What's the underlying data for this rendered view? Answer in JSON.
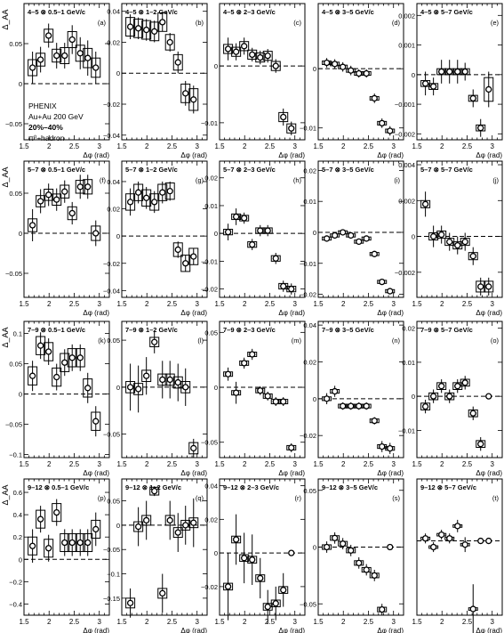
{
  "figure": {
    "ylabel": "Δ_AA",
    "xlabel": "Δφ (rad)",
    "x_ticks": [
      "1.5",
      "2",
      "2.5",
      "3"
    ],
    "experiment": [
      "PHENIX",
      "Au+Au 200 GeV",
      "20%–40%",
      "π⁰–hadron"
    ]
  },
  "chart_data": [
    {
      "row": 0,
      "col": 0,
      "type": "scatter",
      "title": "4–5 ⊗ 0.5–1 GeV/c",
      "tag": "(a)",
      "ylim": [
        -0.07,
        0.1
      ],
      "yticks": [
        -0.05,
        0,
        0.05
      ],
      "ytick_labels": [
        "−0.05",
        "0",
        "0.05"
      ],
      "x": [
        1.67,
        1.83,
        1.99,
        2.15,
        2.31,
        2.46,
        2.62,
        2.77,
        2.93
      ],
      "y": [
        0.02,
        0.03,
        0.06,
        0.035,
        0.035,
        0.055,
        0.038,
        0.032,
        0.02
      ],
      "err": [
        0.02,
        0.016,
        0.015,
        0.016,
        0.016,
        0.018,
        0.02,
        0.022,
        0.02
      ],
      "sys": [
        0.01,
        0.008,
        0.008,
        0.008,
        0.01,
        0.01,
        0.01,
        0.012,
        0.012
      ]
    },
    {
      "row": 0,
      "col": 1,
      "type": "scatter",
      "title": "4–5 ⊗ 1–2 GeV/c",
      "tag": "(b)",
      "ylim": [
        -0.043,
        0.045
      ],
      "yticks": [
        -0.04,
        -0.02,
        0,
        0.02,
        0.04
      ],
      "ytick_labels": [
        "−0.04",
        "−0.02",
        "0",
        "0.02",
        "0.04"
      ],
      "x": [
        1.67,
        1.83,
        1.99,
        2.15,
        2.31,
        2.46,
        2.62,
        2.77,
        2.93
      ],
      "y": [
        0.03,
        0.029,
        0.028,
        0.027,
        0.033,
        0.02,
        0.007,
        -0.013,
        -0.017
      ],
      "err": [
        0.008,
        0.007,
        0.007,
        0.007,
        0.006,
        0.006,
        0.007,
        0.008,
        0.009
      ],
      "sys": [
        0.006,
        0.006,
        0.006,
        0.006,
        0.006,
        0.005,
        0.005,
        0.006,
        0.007
      ]
    },
    {
      "row": 0,
      "col": 2,
      "type": "scatter",
      "title": "4–5 ⊗ 2–3 GeV/c",
      "tag": "(c)",
      "ylim": [
        -0.013,
        0.011
      ],
      "yticks": [
        -0.01,
        0
      ],
      "ytick_labels": [
        "−0.01",
        "0"
      ],
      "x": [
        1.67,
        1.83,
        1.99,
        2.15,
        2.31,
        2.46,
        2.62,
        2.77,
        2.93
      ],
      "y": [
        0.003,
        0.0025,
        0.0035,
        0.002,
        0.0015,
        0.0018,
        0.0,
        -0.009,
        -0.011
      ],
      "err": [
        0.002,
        0.0015,
        0.0015,
        0.0012,
        0.0012,
        0.0012,
        0.0012,
        0.0015,
        0.0012
      ],
      "sys": [
        0.0008,
        0.0008,
        0.0008,
        0.0008,
        0.0008,
        0.0008,
        0.0008,
        0.0008,
        0.0008
      ]
    },
    {
      "row": 0,
      "col": 3,
      "type": "scatter",
      "title": "4–5 ⊗ 3–5 GeV/c",
      "tag": "(d)",
      "ylim": [
        -0.012,
        0.011
      ],
      "yticks": [
        -0.01,
        0
      ],
      "ytick_labels": [
        "−0.01",
        "0"
      ],
      "x": [
        1.67,
        1.83,
        1.99,
        2.15,
        2.31,
        2.46,
        2.62,
        2.77,
        2.93
      ],
      "y": [
        0.001,
        0.0008,
        0.0003,
        -0.0003,
        -0.0008,
        -0.0008,
        -0.005,
        -0.0092,
        -0.0105
      ],
      "err": [
        0.0008,
        0.0008,
        0.0008,
        0.0008,
        0.0007,
        0.0007,
        0.0008,
        0.0008,
        0.0008
      ],
      "sys": [
        0.0003,
        0.0003,
        0.0003,
        0.0003,
        0.0003,
        0.0003,
        0.0003,
        0.0003,
        0.0003
      ]
    },
    {
      "row": 0,
      "col": 4,
      "type": "scatter",
      "title": "4–5 ⊗ 5–7 GeV/c",
      "tag": "(e)",
      "ylim": [
        -0.0022,
        0.0024
      ],
      "yticks": [
        -0.002,
        -0.001,
        0,
        0.001,
        0.002
      ],
      "ytick_labels": [
        "−0.002",
        "−0.001",
        "0",
        "0.001",
        "0.002"
      ],
      "x": [
        1.67,
        1.83,
        1.99,
        2.15,
        2.31,
        2.46,
        2.62,
        2.77,
        2.93
      ],
      "y": [
        -0.0003,
        -0.0004,
        0.0001,
        0.0001,
        0.0001,
        0.0001,
        -0.0008,
        -0.0018,
        -0.0005
      ],
      "err": [
        0.0004,
        0.0003,
        0.0004,
        0.0004,
        0.0004,
        0.0003,
        0.0003,
        0.0003,
        0.0006
      ],
      "sys": [
        0.0001,
        0.0001,
        0.0001,
        0.0001,
        0.0001,
        0.0001,
        0.0001,
        0.0001,
        0.0004
      ]
    },
    {
      "row": 1,
      "col": 0,
      "type": "scatter",
      "title": "5–7 ⊗ 0.5–1 GeV/c",
      "tag": "(f)",
      "ylim": [
        -0.08,
        0.09
      ],
      "yticks": [
        -0.05,
        0,
        0.05
      ],
      "ytick_labels": [
        "−0.05",
        "0",
        "0.05"
      ],
      "x": [
        1.67,
        1.83,
        1.99,
        2.15,
        2.31,
        2.46,
        2.62,
        2.77,
        2.93
      ],
      "y": [
        0.01,
        0.04,
        0.048,
        0.042,
        0.052,
        0.025,
        0.058,
        0.058,
        0.0
      ],
      "err": [
        0.02,
        0.015,
        0.014,
        0.014,
        0.014,
        0.014,
        0.015,
        0.015,
        0.016
      ],
      "sys": [
        0.008,
        0.007,
        0.007,
        0.007,
        0.008,
        0.008,
        0.008,
        0.009,
        0.009
      ]
    },
    {
      "row": 1,
      "col": 1,
      "type": "scatter",
      "title": "5–7 ⊗ 1–2 GeV/c",
      "tag": "(g)",
      "ylim": [
        -0.045,
        0.055
      ],
      "yticks": [
        -0.04,
        -0.02,
        0,
        0.02,
        0.04
      ],
      "ytick_labels": [
        "−0.04",
        "−0.02",
        "0",
        "0.02",
        "0.04"
      ],
      "x": [
        1.67,
        1.83,
        1.99,
        2.15,
        2.31,
        2.46,
        2.62,
        2.77,
        2.93
      ],
      "y": [
        0.025,
        0.032,
        0.028,
        0.025,
        0.032,
        0.033,
        -0.01,
        -0.02,
        -0.015
      ],
      "err": [
        0.01,
        0.008,
        0.008,
        0.008,
        0.008,
        0.007,
        0.006,
        0.006,
        0.006
      ],
      "sys": [
        0.006,
        0.006,
        0.006,
        0.006,
        0.006,
        0.006,
        0.005,
        0.006,
        0.006
      ]
    },
    {
      "row": 1,
      "col": 2,
      "type": "scatter",
      "title": "5–7 ⊗ 2–3 GeV/c",
      "tag": "(h)",
      "ylim": [
        -0.023,
        0.026
      ],
      "yticks": [
        -0.02,
        -0.01,
        0,
        0.01,
        0.02
      ],
      "ytick_labels": [
        "−0.02",
        "−0.01",
        "0",
        "0.01",
        "0.02"
      ],
      "x": [
        1.67,
        1.83,
        1.99,
        2.15,
        2.31,
        2.46,
        2.62,
        2.77,
        2.93
      ],
      "y": [
        0.0005,
        0.006,
        0.0055,
        -0.004,
        0.001,
        0.001,
        -0.009,
        -0.019,
        -0.02
      ],
      "err": [
        0.003,
        0.003,
        0.002,
        0.002,
        0.002,
        0.002,
        0.002,
        0.002,
        0.002
      ],
      "sys": [
        0.001,
        0.001,
        0.001,
        0.001,
        0.001,
        0.001,
        0.001,
        0.001,
        0.001
      ]
    },
    {
      "row": 1,
      "col": 3,
      "type": "scatter",
      "title": "5–7 ⊗ 3–5 GeV/c",
      "tag": "(i)",
      "ylim": [
        -0.021,
        0.023
      ],
      "yticks": [
        -0.02,
        -0.01,
        0,
        0.01,
        0.02
      ],
      "ytick_labels": [
        "−0.02",
        "−0.01",
        "0",
        "0.01",
        "0.02"
      ],
      "x": [
        1.67,
        1.83,
        1.99,
        2.15,
        2.31,
        2.46,
        2.62,
        2.77,
        2.93
      ],
      "y": [
        -0.002,
        -0.001,
        0.0,
        -0.001,
        -0.003,
        -0.002,
        -0.007,
        -0.016,
        -0.019
      ],
      "err": [
        0.001,
        0.001,
        0.001,
        0.001,
        0.001,
        0.001,
        0.001,
        0.001,
        0.001
      ],
      "sys": [
        0.0005,
        0.0005,
        0.0005,
        0.0005,
        0.0005,
        0.0005,
        0.0005,
        0.0005,
        0.0005
      ]
    },
    {
      "row": 1,
      "col": 4,
      "type": "scatter",
      "title": "5–7 ⊗ 5–7 GeV/c",
      "tag": "(j)",
      "ylim": [
        -0.0034,
        0.0042
      ],
      "yticks": [
        -0.002,
        0,
        0.002,
        0.004
      ],
      "ytick_labels": [
        "−0.002",
        "0",
        "0.002",
        "0.004"
      ],
      "x": [
        1.67,
        1.83,
        1.99,
        2.15,
        2.31,
        2.46,
        2.62,
        2.77,
        2.93
      ],
      "y": [
        0.0018,
        0.0,
        0.0001,
        -0.0003,
        -0.0005,
        -0.0003,
        -0.0011,
        -0.0028,
        -0.0028
      ],
      "err": [
        0.0007,
        0.0006,
        0.0005,
        0.0005,
        0.0005,
        0.0005,
        0.0005,
        0.0005,
        0.0005
      ],
      "sys": [
        0.0002,
        0.0002,
        0.0002,
        0.0002,
        0.0002,
        0.0002,
        0.0002,
        0.0003,
        0.0003
      ]
    },
    {
      "row": 2,
      "col": 0,
      "type": "scatter",
      "title": "7–9 ⊗ 0.5–1 GeV/c",
      "tag": "(k)",
      "ylim": [
        -0.105,
        0.12
      ],
      "yticks": [
        -0.1,
        -0.05,
        0,
        0.05,
        0.1
      ],
      "ytick_labels": [
        "−0.1",
        "−0.05",
        "0",
        "0.05",
        "0.1"
      ],
      "x": [
        1.67,
        1.83,
        1.99,
        2.15,
        2.31,
        2.46,
        2.62,
        2.77,
        2.93
      ],
      "y": [
        0.03,
        0.08,
        0.07,
        0.028,
        0.052,
        0.06,
        0.06,
        0.01,
        -0.045
      ],
      "err": [
        0.025,
        0.022,
        0.022,
        0.022,
        0.022,
        0.022,
        0.022,
        0.025,
        0.025
      ],
      "sys": [
        0.015,
        0.015,
        0.015,
        0.015,
        0.015,
        0.015,
        0.015,
        0.015,
        0.015
      ]
    },
    {
      "row": 2,
      "col": 1,
      "type": "scatter",
      "title": "7–9 ⊗ 1–2 GeV/c",
      "tag": "(l)",
      "ylim": [
        -0.075,
        0.07
      ],
      "yticks": [
        -0.05,
        0,
        0.05
      ],
      "ytick_labels": [
        "−0.05",
        "0",
        "0.05"
      ],
      "x": [
        1.67,
        1.83,
        1.99,
        2.15,
        2.31,
        2.46,
        2.62,
        2.77,
        2.93
      ],
      "y": [
        0.0,
        -0.002,
        0.012,
        0.048,
        0.008,
        0.008,
        0.005,
        0.0,
        -0.065
      ],
      "err": [
        0.025,
        0.025,
        0.02,
        0.012,
        0.02,
        0.02,
        0.02,
        0.02,
        0.01
      ],
      "sys": [
        0.006,
        0.006,
        0.006,
        0.005,
        0.006,
        0.006,
        0.006,
        0.006,
        0.006
      ]
    },
    {
      "row": 2,
      "col": 2,
      "type": "scatter",
      "title": "7–9 ⊗ 2–3 GeV/c",
      "tag": "(m)",
      "ylim": [
        -0.064,
        0.06
      ],
      "yticks": [
        -0.05,
        0,
        0.05
      ],
      "ytick_labels": [
        "−0.05",
        "0",
        "0.05"
      ],
      "x": [
        1.67,
        1.83,
        1.99,
        2.15,
        2.31,
        2.46,
        2.62,
        2.77,
        2.93
      ],
      "y": [
        0.012,
        -0.005,
        0.022,
        0.03,
        -0.003,
        -0.008,
        -0.013,
        -0.013,
        -0.055
      ],
      "err": [
        0.006,
        0.01,
        0.005,
        0.005,
        0.004,
        0.004,
        0.004,
        0.004,
        0.004
      ],
      "sys": [
        0.002,
        0.002,
        0.002,
        0.002,
        0.002,
        0.002,
        0.002,
        0.002,
        0.002
      ]
    },
    {
      "row": 2,
      "col": 3,
      "type": "scatter",
      "title": "7–9 ⊗ 3–5 GeV/c",
      "tag": "(n)",
      "ylim": [
        -0.032,
        0.042
      ],
      "yticks": [
        -0.02,
        0,
        0.02,
        0.04
      ],
      "ytick_labels": [
        "−0.02",
        "0",
        "0.02",
        "0.04"
      ],
      "x": [
        1.67,
        1.83,
        1.99,
        2.15,
        2.31,
        2.46,
        2.62,
        2.77,
        2.93
      ],
      "y": [
        0.0,
        0.004,
        -0.004,
        -0.004,
        -0.004,
        -0.004,
        -0.012,
        -0.026,
        -0.027
      ],
      "err": [
        0.003,
        0.003,
        0.002,
        0.002,
        0.002,
        0.002,
        0.002,
        0.003,
        0.003
      ],
      "sys": [
        0.001,
        0.001,
        0.001,
        0.001,
        0.001,
        0.001,
        0.001,
        0.001,
        0.001
      ]
    },
    {
      "row": 2,
      "col": 4,
      "type": "scatter",
      "title": "7–9 ⊗ 5–7 GeV/c",
      "tag": "(o)",
      "ylim": [
        -0.018,
        0.022
      ],
      "yticks": [
        -0.01,
        0,
        0.01,
        0.02
      ],
      "ytick_labels": [
        "−0.01",
        "0",
        "0.01",
        "0.02"
      ],
      "x": [
        1.67,
        1.83,
        1.99,
        2.15,
        2.31,
        2.46,
        2.62,
        2.77,
        2.93
      ],
      "y": [
        -0.003,
        0.0,
        0.003,
        0.0,
        0.003,
        0.004,
        -0.005,
        -0.014,
        0.0
      ],
      "err": [
        0.002,
        0.002,
        0.002,
        0.002,
        0.002,
        0.002,
        0.002,
        0.002,
        0.0
      ],
      "sys": [
        0.001,
        0.001,
        0.001,
        0.001,
        0.001,
        0.001,
        0.001,
        0.001,
        0.0
      ]
    },
    {
      "row": 3,
      "col": 0,
      "type": "scatter",
      "title": "9–12 ⊗ 0.5–1 GeV/c",
      "tag": "(p)",
      "ylim": [
        -0.5,
        0.72
      ],
      "yticks": [
        -0.4,
        -0.2,
        0,
        0.2,
        0.4,
        0.6
      ],
      "ytick_labels": [
        "−0.4",
        "−0.2",
        "0",
        "0.2",
        "0.4",
        "0.6"
      ],
      "x": [
        1.67,
        1.83,
        1.99,
        2.15,
        2.31,
        2.46,
        2.62,
        2.77,
        2.93
      ],
      "y": [
        0.12,
        0.36,
        0.1,
        0.42,
        0.15,
        0.15,
        0.15,
        0.15,
        0.27
      ],
      "err": [
        0.15,
        0.12,
        0.12,
        0.12,
        0.12,
        0.12,
        0.12,
        0.12,
        0.15
      ],
      "sys": [
        0.08,
        0.08,
        0.08,
        0.08,
        0.08,
        0.08,
        0.08,
        0.08,
        0.08
      ]
    },
    {
      "row": 3,
      "col": 1,
      "type": "scatter",
      "title": "9–12 ⊗ 1–2 GeV/c",
      "tag": "(q)",
      "ylim": [
        -0.185,
        0.095
      ],
      "yticks": [
        -0.15,
        -0.1,
        -0.05,
        0,
        0.05
      ],
      "ytick_labels": [
        "−0.15",
        "−0.1",
        "−0.05",
        "0",
        "0.05"
      ],
      "x": [
        1.67,
        1.83,
        1.99,
        2.15,
        2.31,
        2.46,
        2.62,
        2.77,
        2.93
      ],
      "y": [
        -0.16,
        -0.003,
        0.01,
        0.07,
        -0.14,
        0.01,
        -0.015,
        0.0,
        0.005
      ],
      "err": [
        0.03,
        0.04,
        0.04,
        0.01,
        0.04,
        0.04,
        0.04,
        0.04,
        0.05
      ],
      "sys": [
        0.01,
        0.01,
        0.01,
        0.008,
        0.01,
        0.01,
        0.01,
        0.01,
        0.01
      ]
    },
    {
      "row": 3,
      "col": 2,
      "type": "scatter",
      "title": "9–12 ⊗ 2–3 GeV/c",
      "tag": "(r)",
      "ylim": [
        -0.037,
        0.044
      ],
      "yticks": [
        -0.02,
        0,
        0.02,
        0.04
      ],
      "ytick_labels": [
        "−0.02",
        "0",
        "0.02",
        "0.04"
      ],
      "x": [
        1.67,
        1.83,
        1.99,
        2.15,
        2.31,
        2.46,
        2.62,
        2.77,
        2.93
      ],
      "y": [
        -0.02,
        0.008,
        -0.003,
        -0.004,
        -0.015,
        -0.032,
        -0.03,
        -0.022,
        0.0
      ],
      "err": [
        0.02,
        0.015,
        0.015,
        0.015,
        0.012,
        0.01,
        0.01,
        0.01,
        0.0
      ],
      "sys": [
        0.002,
        0.002,
        0.002,
        0.002,
        0.002,
        0.002,
        0.002,
        0.002,
        0.0
      ]
    },
    {
      "row": 3,
      "col": 3,
      "type": "scatter",
      "title": "9–12 ⊗ 3–5 GeV/c",
      "tag": "(s)",
      "ylim": [
        -0.06,
        0.06
      ],
      "yticks": [
        -0.05,
        0,
        0.05
      ],
      "ytick_labels": [
        "−0.05",
        "0",
        "0.05"
      ],
      "x": [
        1.67,
        1.83,
        1.99,
        2.15,
        2.31,
        2.46,
        2.62,
        2.77,
        2.93
      ],
      "y": [
        0.0,
        0.008,
        0.003,
        -0.003,
        -0.014,
        -0.02,
        -0.025,
        -0.055,
        0.0
      ],
      "err": [
        0.005,
        0.005,
        0.005,
        0.005,
        0.005,
        0.005,
        0.005,
        0.005,
        0.0
      ],
      "sys": [
        0.002,
        0.002,
        0.002,
        0.002,
        0.002,
        0.002,
        0.002,
        0.002,
        0.0
      ]
    },
    {
      "row": 3,
      "col": 4,
      "type": "scatter",
      "title": "9–12 ⊗ 5–7 GeV/c",
      "tag": "(t)",
      "ylim": [
        -0.06,
        0.05
      ],
      "yticks": [],
      "ytick_labels": [],
      "x": [
        1.67,
        1.83,
        1.99,
        2.15,
        2.31,
        2.46,
        2.62,
        2.77,
        2.93
      ],
      "y": [
        0.002,
        -0.005,
        0.005,
        0.002,
        0.012,
        -0.003,
        -0.055,
        0.0,
        0.0
      ],
      "err": [
        0.004,
        0.004,
        0.004,
        0.004,
        0.005,
        0.006,
        0.02,
        0.0,
        0.0
      ],
      "sys": [
        0.001,
        0.001,
        0.001,
        0.001,
        0.001,
        0.001,
        0.001,
        0.0,
        0.0
      ]
    }
  ]
}
